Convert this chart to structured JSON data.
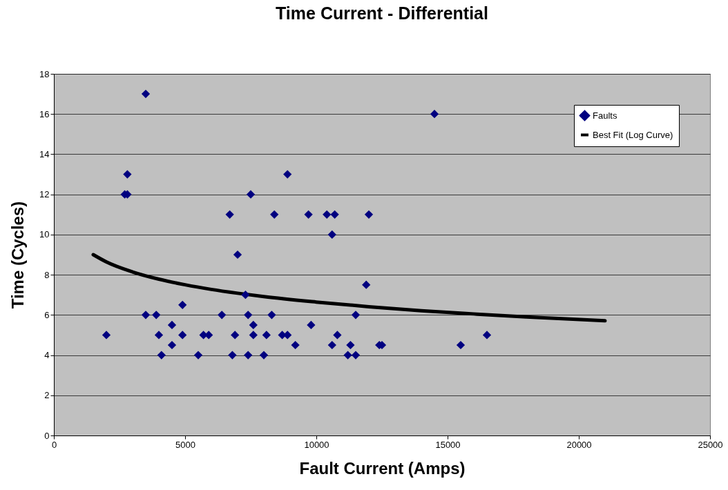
{
  "chart_data": {
    "type": "scatter",
    "title": "Time Current - Differential",
    "xlabel": "Fault Current (Amps)",
    "ylabel": "Time (Cycles)",
    "xlim": [
      0,
      25000
    ],
    "xticks": [
      0,
      5000,
      10000,
      15000,
      20000,
      25000
    ],
    "ylim": [
      0,
      18
    ],
    "yticks": [
      0,
      2,
      4,
      6,
      8,
      10,
      12,
      14,
      16,
      18
    ],
    "grid": "y",
    "legend": "top right",
    "series": [
      {
        "name": "Faults",
        "marker": "diamond",
        "color": "#000080",
        "x": [
          2000,
          2700,
          2800,
          2800,
          3500,
          3500,
          3900,
          4000,
          4100,
          4500,
          4500,
          4900,
          4900,
          5500,
          5700,
          5900,
          6400,
          6700,
          6800,
          6900,
          7000,
          7300,
          7400,
          7400,
          7500,
          7600,
          7600,
          8000,
          8100,
          8300,
          8400,
          8700,
          8900,
          8900,
          9200,
          9700,
          9800,
          10400,
          10600,
          10600,
          10700,
          10800,
          11200,
          11300,
          11500,
          11500,
          11900,
          12000,
          12400,
          12500,
          14500,
          15500,
          16500
        ],
        "values": [
          5,
          12,
          12,
          13,
          17,
          6,
          6,
          5,
          4,
          5.5,
          4.5,
          6.5,
          5,
          4,
          5,
          5,
          6,
          11,
          4,
          5,
          9,
          7,
          6,
          4,
          12,
          5.5,
          5,
          4,
          5,
          6,
          11,
          5,
          13,
          5,
          4.5,
          11,
          5.5,
          11,
          4.5,
          10,
          11,
          5,
          4,
          4.5,
          6,
          4,
          7.5,
          11,
          4.5,
          4.5,
          16,
          4.5,
          5
        ]
      },
      {
        "name": "Best Fit (Log Curve)",
        "type": "line",
        "color": "#000000",
        "x": [
          1500,
          2000,
          3000,
          4000,
          5000,
          6000,
          7000,
          8000,
          10000,
          12000,
          14000,
          16000,
          18000,
          21000
        ],
        "values": [
          9.0,
          8.64,
          8.14,
          7.78,
          7.5,
          7.27,
          7.08,
          6.91,
          6.64,
          6.41,
          6.21,
          6.05,
          5.9,
          5.71
        ]
      }
    ]
  }
}
